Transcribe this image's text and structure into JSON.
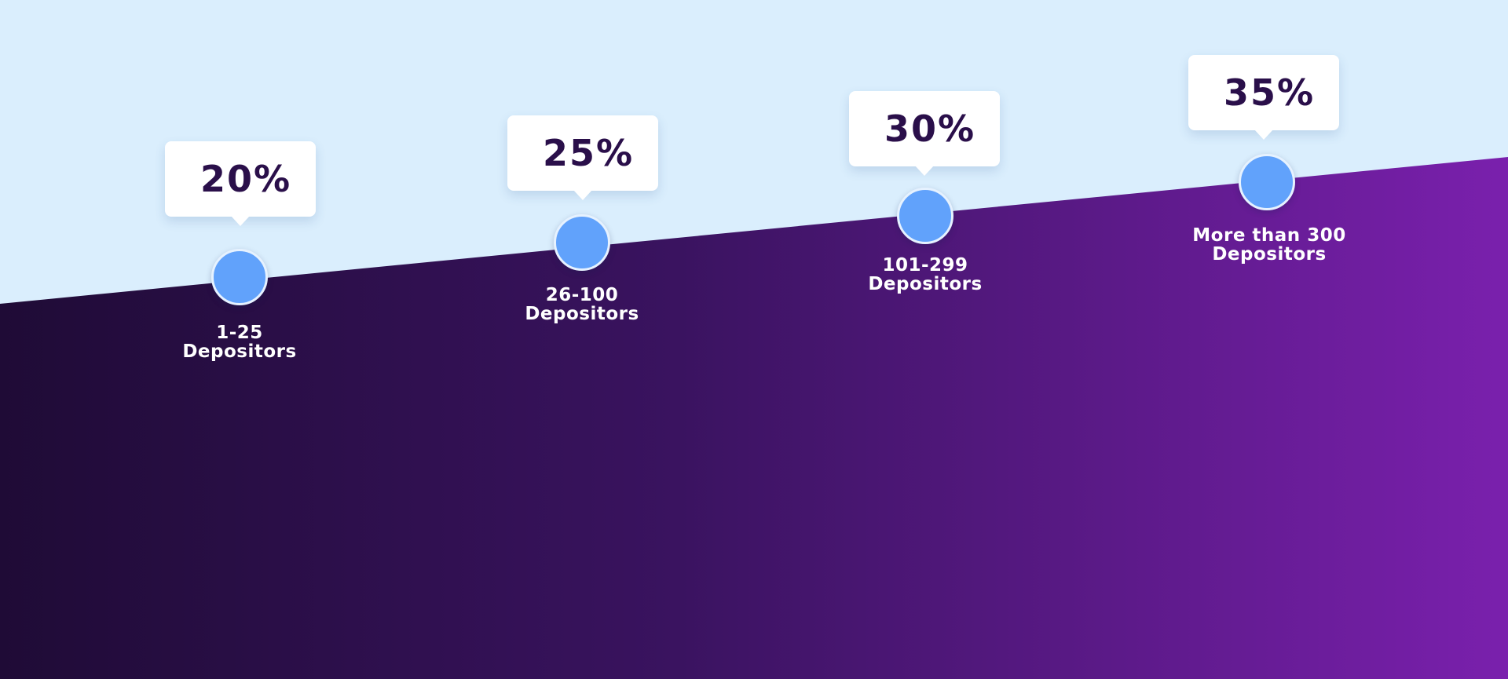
{
  "colors": {
    "sky": "#daeefd",
    "band_left": "#1f0b36",
    "band_mid": "#3a1360",
    "band_right": "#7a20ad",
    "dot": "#61a2fb",
    "percent_text": "#2a0f4a",
    "label_text": "#ffffff"
  },
  "tiers": [
    {
      "percent": "20%",
      "label_line1": "1-25",
      "label_line2": "Depositors"
    },
    {
      "percent": "25%",
      "label_line1": "26-100",
      "label_line2": "Depositors"
    },
    {
      "percent": "30%",
      "label_line1": "101-299",
      "label_line2": "Depositors"
    },
    {
      "percent": "35%",
      "label_line1": "More than 300",
      "label_line2": "Depositors"
    }
  ]
}
